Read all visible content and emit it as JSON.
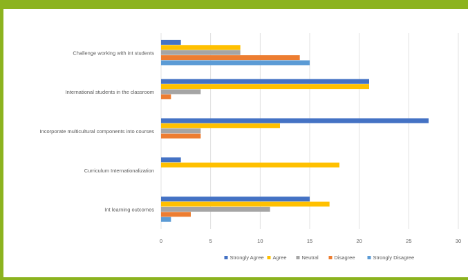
{
  "chart_data": {
    "type": "bar",
    "orientation": "horizontal",
    "title": "",
    "categories": [
      "Challenge working with int students",
      "International students in the classroom",
      "Incorporate multicultural components into courses",
      "Curriculum Internationalization",
      "Int learning outcomes"
    ],
    "series": [
      {
        "name": "Strongly Agree",
        "color": "#4472c4",
        "values": [
          2,
          21,
          27,
          2,
          15
        ]
      },
      {
        "name": "Agree",
        "color": "#ffc000",
        "values": [
          8,
          21,
          12,
          18,
          17
        ]
      },
      {
        "name": "Neutral",
        "color": "#a5a5a5",
        "values": [
          8,
          4,
          4,
          0,
          11
        ]
      },
      {
        "name": "Disagree",
        "color": "#ed7d31",
        "values": [
          14,
          1,
          4,
          0,
          3
        ]
      },
      {
        "name": "Strongly Disagree",
        "color": "#5b9bd5",
        "values": [
          15,
          0,
          0,
          0,
          1
        ]
      }
    ],
    "xlim": [
      0,
      30
    ],
    "xticks": [
      "0",
      "5",
      "10",
      "15",
      "20",
      "25",
      "30"
    ],
    "grid": true,
    "legend_position": "bottom"
  }
}
